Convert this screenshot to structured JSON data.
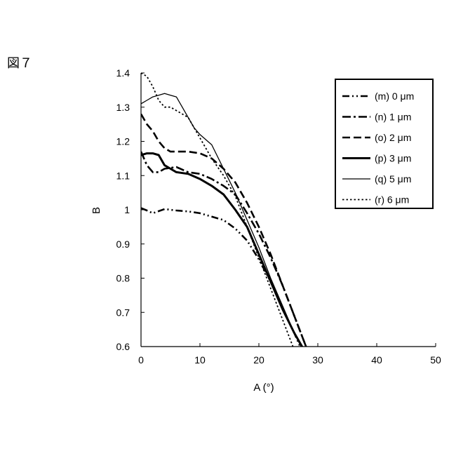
{
  "figure_label": "図７",
  "chart_data": {
    "type": "line",
    "xlabel": "A (°)",
    "ylabel": "B",
    "xlim": [
      0,
      50
    ],
    "ylim": [
      0.6,
      1.4
    ],
    "xticks": [
      0,
      10,
      20,
      30,
      40,
      50
    ],
    "xtick_labels": [
      "0",
      "10",
      "20",
      "30",
      "40",
      "50"
    ],
    "yticks": [
      0.6,
      0.7,
      0.8,
      0.9,
      1.0,
      1.1,
      1.2,
      1.3,
      1.4
    ],
    "ytick_labels": [
      "0.6",
      "0.7",
      "0.8",
      "0.9",
      "1",
      "1.1",
      "1.2",
      "1.3",
      "1.4"
    ],
    "grid": false,
    "legend_position": "top-right",
    "series": [
      {
        "name": "(m) 0 μm",
        "style": "dash-dot-dot",
        "x": [
          0,
          1,
          2,
          4,
          6,
          8,
          10,
          12,
          14,
          16,
          18,
          20,
          22,
          24,
          26,
          28
        ],
        "y": [
          1.005,
          0.998,
          0.99,
          1.002,
          0.998,
          0.995,
          0.99,
          0.98,
          0.97,
          0.945,
          0.91,
          0.855,
          0.79,
          0.71,
          0.64,
          0.56
        ]
      },
      {
        "name": "(n) 1 μm",
        "style": "dash-dot",
        "x": [
          0,
          1,
          2,
          3,
          4,
          6,
          8,
          10,
          12,
          14,
          16,
          18,
          20,
          22,
          24,
          26,
          28
        ],
        "y": [
          1.17,
          1.13,
          1.11,
          1.11,
          1.12,
          1.125,
          1.11,
          1.105,
          1.09,
          1.07,
          1.045,
          0.99,
          0.93,
          0.86,
          0.78,
          0.69,
          0.6
        ]
      },
      {
        "name": "(o) 2 μm",
        "style": "dashed",
        "x": [
          0,
          1,
          2,
          3,
          4,
          5,
          6,
          8,
          10,
          12,
          14,
          16,
          18,
          20,
          22,
          24,
          26,
          28
        ],
        "y": [
          1.28,
          1.25,
          1.23,
          1.2,
          1.18,
          1.17,
          1.17,
          1.17,
          1.165,
          1.15,
          1.12,
          1.08,
          1.02,
          0.95,
          0.87,
          0.78,
          0.69,
          0.6
        ]
      },
      {
        "name": "(p) 3 μm",
        "style": "solid-thick",
        "x": [
          0,
          1,
          2,
          3,
          4,
          5,
          6,
          8,
          10,
          12,
          14,
          16,
          18,
          20,
          22,
          24,
          26,
          28
        ],
        "y": [
          1.16,
          1.165,
          1.165,
          1.16,
          1.13,
          1.12,
          1.11,
          1.105,
          1.09,
          1.07,
          1.045,
          1.0,
          0.95,
          0.87,
          0.79,
          0.71,
          0.64,
          0.58
        ]
      },
      {
        "name": "(q) 5 μm",
        "style": "solid-thin",
        "x": [
          0,
          1,
          2,
          3,
          4,
          5,
          6,
          7,
          8,
          9,
          10,
          12,
          14,
          16,
          18,
          20,
          22,
          24,
          26,
          28
        ],
        "y": [
          1.31,
          1.32,
          1.33,
          1.335,
          1.34,
          1.335,
          1.33,
          1.3,
          1.27,
          1.24,
          1.22,
          1.19,
          1.12,
          1.05,
          0.97,
          0.89,
          0.8,
          0.72,
          0.64,
          0.57
        ]
      },
      {
        "name": "(r) 6 μm",
        "style": "dotted",
        "x": [
          0,
          1,
          2,
          3,
          4,
          5,
          6,
          7,
          8,
          9,
          10,
          12,
          14,
          16,
          18,
          20,
          22,
          24,
          26
        ],
        "y": [
          1.4,
          1.39,
          1.36,
          1.32,
          1.3,
          1.3,
          1.29,
          1.28,
          1.27,
          1.24,
          1.21,
          1.15,
          1.1,
          1.04,
          0.95,
          0.86,
          0.77,
          0.68,
          0.59
        ]
      }
    ]
  }
}
